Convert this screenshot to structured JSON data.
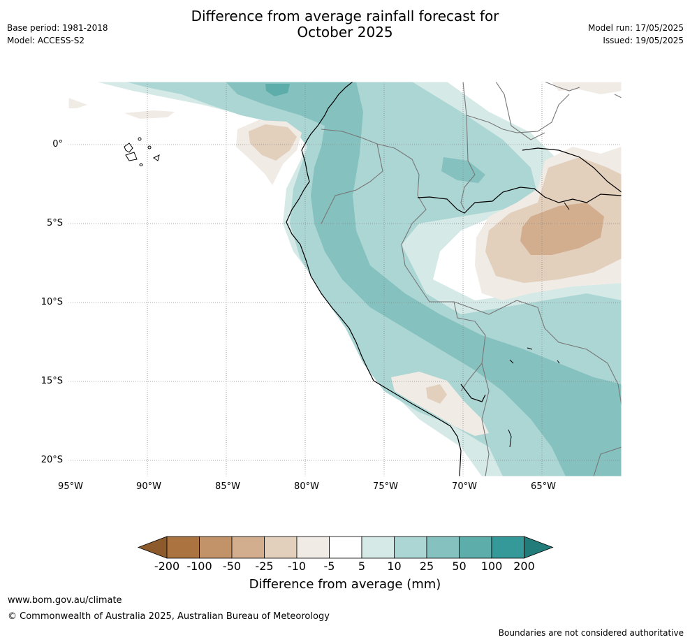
{
  "header": {
    "title_line1": "Difference from average rainfall forecast for",
    "title_line2": "October 2025",
    "base_period": "Base period: 1981-2018",
    "model": "Model: ACCESS-S2",
    "model_run": "Model run: 17/05/2025",
    "issued": "Issued: 19/05/2025"
  },
  "map": {
    "lat_labels": [
      "0°",
      "5°S",
      "10°S",
      "15°S",
      "20°S"
    ],
    "lon_labels": [
      "95°W",
      "90°W",
      "85°W",
      "80°W",
      "75°W",
      "70°W",
      "65°W"
    ]
  },
  "colorbar": {
    "labels": [
      "-200",
      "-100",
      "-50",
      "-25",
      "-10",
      "-5",
      "5",
      "10",
      "25",
      "50",
      "100",
      "200"
    ],
    "colors": [
      "#aa7340",
      "#c29369",
      "#d2ae8f",
      "#e2cfbc",
      "#f0ebe5",
      "#ffffff",
      "#d5e9e7",
      "#acd6d4",
      "#84c1bf",
      "#5dadab",
      "#35999a"
    ],
    "low_end_color": "#8c5a2b",
    "high_end_color": "#217c7a",
    "title": "Difference from average (mm)"
  },
  "footer": {
    "url": "www.bom.gov.au/climate",
    "copyright": "© Commonwealth of Australia 2025, Australian Bureau of Meteorology",
    "disclaimer": "Boundaries are not considered authoritative"
  }
}
